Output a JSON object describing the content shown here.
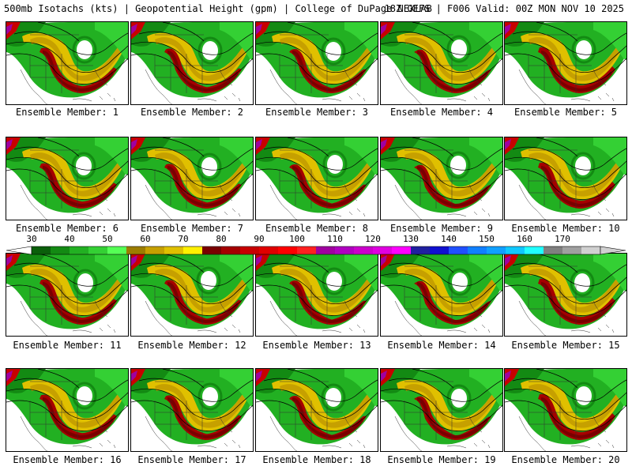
{
  "header": {
    "title": "500mb Isotachs (kts) | Geopotential Height (gpm) | College of DuPage NEXLAB",
    "run_info": "18Z GEFS | F006 Valid: 00Z MON NOV 10 2025"
  },
  "caption_prefix": "Ensemble Member: ",
  "members": [
    "Ensemble Member: 1",
    "Ensemble Member: 2",
    "Ensemble Member: 3",
    "Ensemble Member: 4",
    "Ensemble Member: 5",
    "Ensemble Member: 6",
    "Ensemble Member: 7",
    "Ensemble Member: 8",
    "Ensemble Member: 9",
    "Ensemble Member: 10",
    "Ensemble Member: 11",
    "Ensemble Member: 12",
    "Ensemble Member: 13",
    "Ensemble Member: 14",
    "Ensemble Member: 15",
    "Ensemble Member: 16",
    "Ensemble Member: 17",
    "Ensemble Member: 18",
    "Ensemble Member: 19",
    "Ensemble Member: 20"
  ],
  "colorbar": {
    "units": "kts",
    "tick_labels": [
      "30",
      "40",
      "50",
      "60",
      "70",
      "80",
      "90",
      "100",
      "110",
      "120",
      "130",
      "140",
      "150",
      "160",
      "170"
    ],
    "colors": [
      "#0a5f0a",
      "#138a13",
      "#22b022",
      "#34d034",
      "#55ff55",
      "#9c7d00",
      "#c6a000",
      "#e0c000",
      "#fff000",
      "#7a0000",
      "#a50000",
      "#c80000",
      "#e00000",
      "#ff0000",
      "#ff2020",
      "#a000a0",
      "#b000c0",
      "#cc00cc",
      "#e000e0",
      "#ff00ff",
      "#2020a0",
      "#1010d0",
      "#2050ff",
      "#1080ff",
      "#10a0ff",
      "#10c8ff",
      "#20ffff",
      "#808080",
      "#a0a0a0",
      "#d0d0d0"
    ]
  }
}
